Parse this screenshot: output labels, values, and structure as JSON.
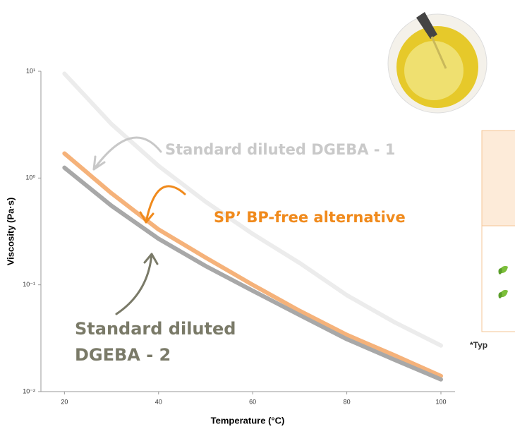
{
  "chart_data": {
    "type": "line",
    "xlabel": "Temperature (°C)",
    "ylabel": "Viscosity (Pa·s)",
    "x": [
      20,
      30,
      40,
      50,
      60,
      70,
      80,
      90,
      100
    ],
    "series": [
      {
        "name": "Standard diluted DGEBA - 1",
        "color": "#ececec",
        "values": [
          9.5,
          3.2,
          1.3,
          0.6,
          0.3,
          0.16,
          0.08,
          0.045,
          0.027
        ]
      },
      {
        "name": "SP’ BP-free alternative",
        "color": "#f5b27a",
        "values": [
          1.7,
          0.72,
          0.33,
          0.18,
          0.1,
          0.057,
          0.034,
          0.022,
          0.014
        ]
      },
      {
        "name": "Standard diluted DGEBA - 2",
        "color": "#a8a8a8",
        "values": [
          1.25,
          0.55,
          0.27,
          0.15,
          0.088,
          0.052,
          0.031,
          0.02,
          0.013
        ]
      }
    ],
    "xlim": [
      15,
      103
    ],
    "xticks": [
      20,
      40,
      60,
      80,
      100
    ],
    "ylim": [
      0.01,
      10
    ],
    "yscale": "log",
    "yticks": [
      {
        "value": 10,
        "label": "10¹"
      },
      {
        "value": 1,
        "label": "10⁰"
      },
      {
        "value": 0.1,
        "label": "10⁻¹"
      },
      {
        "value": 0.01,
        "label": "10⁻²"
      }
    ],
    "footnote": "*Typ"
  }
}
